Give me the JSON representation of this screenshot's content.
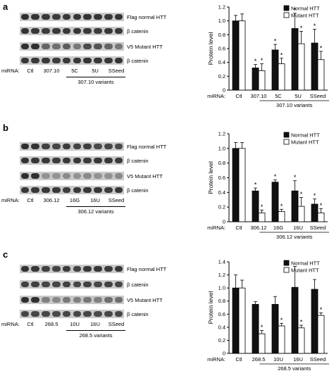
{
  "panels": [
    {
      "label": "a",
      "blot_labels": [
        "Flag normal HTT",
        "β catenin",
        "V5 Mutant HTT",
        "β catenin"
      ],
      "blot_intensity": [
        [
          0.85,
          0.82,
          0.8,
          0.78,
          0.8,
          0.82,
          0.83,
          0.82,
          0.8,
          0.82
        ],
        [
          0.82,
          0.8,
          0.78,
          0.8,
          0.8,
          0.82,
          0.8,
          0.78,
          0.8,
          0.8
        ],
        [
          0.85,
          0.85,
          0.55,
          0.5,
          0.6,
          0.45,
          0.7,
          0.65,
          0.55,
          0.45
        ],
        [
          0.8,
          0.8,
          0.8,
          0.78,
          0.8,
          0.8,
          0.82,
          0.8,
          0.8,
          0.82
        ]
      ],
      "lanes": [
        "Ctl",
        "307.10",
        "5C",
        "5U",
        "SSeed"
      ],
      "miRNA_label": "miRNA:",
      "variants_label": "307.10 variants",
      "chart_data": {
        "type": "bar",
        "title": "",
        "xlabel": "",
        "ylabel": "Protein level",
        "ylim": [
          0,
          1.2
        ],
        "yticks": [
          0,
          0.2,
          0.4,
          0.6,
          0.8,
          1.0,
          1.2
        ],
        "x_prefix": "miRNA:",
        "categories": [
          "Ctl",
          "307.10",
          "5C",
          "5U",
          "SSeed"
        ],
        "group_label": "307.10 variants",
        "series": [
          {
            "name": "Normal HTT",
            "values": [
              1.0,
              0.32,
              0.58,
              0.89,
              0.68
            ],
            "errors": [
              0.08,
              0.05,
              0.08,
              0.22,
              0.2
            ],
            "color": "#111111"
          },
          {
            "name": "Mutant HTT",
            "values": [
              1.0,
              0.28,
              0.38,
              0.67,
              0.44
            ],
            "errors": [
              0.1,
              0.1,
              0.08,
              0.18,
              0.12
            ],
            "color": "#ffffff"
          }
        ],
        "stars": [
          [
            false,
            false
          ],
          [
            true,
            true
          ],
          [
            true,
            true
          ],
          [
            true,
            true
          ],
          [
            true,
            true
          ]
        ],
        "legend_position": "top-right"
      }
    },
    {
      "label": "b",
      "blot_labels": [
        "Flag normal HTT",
        "β catenin",
        "V5 Mutant HTT",
        "β catenin"
      ],
      "blot_intensity": [
        [
          0.85,
          0.82,
          0.75,
          0.72,
          0.78,
          0.74,
          0.76,
          0.7,
          0.72,
          0.7
        ],
        [
          0.82,
          0.8,
          0.8,
          0.78,
          0.8,
          0.8,
          0.78,
          0.8,
          0.8,
          0.78
        ],
        [
          0.85,
          0.85,
          0.3,
          0.3,
          0.35,
          0.3,
          0.35,
          0.3,
          0.3,
          0.35
        ],
        [
          0.8,
          0.8,
          0.8,
          0.8,
          0.78,
          0.8,
          0.8,
          0.8,
          0.78,
          0.8
        ]
      ],
      "lanes": [
        "Ctl",
        "306.12",
        "16G",
        "16U",
        "SSeed"
      ],
      "miRNA_label": "miRNA:",
      "variants_label": "306.12 variants",
      "chart_data": {
        "type": "bar",
        "title": "",
        "xlabel": "",
        "ylabel": "Protein level",
        "ylim": [
          0,
          1.2
        ],
        "yticks": [
          0,
          0.2,
          0.4,
          0.6,
          0.8,
          1.0,
          1.2
        ],
        "x_prefix": "miRNA:",
        "categories": [
          "Ctl",
          "306.12",
          "16G",
          "16U",
          "SSeed"
        ],
        "group_label": "306.12 variants",
        "series": [
          {
            "name": "Normal HTT",
            "values": [
              1.0,
              0.42,
              0.54,
              0.42,
              0.24
            ],
            "errors": [
              0.08,
              0.04,
              0.03,
              0.14,
              0.07
            ],
            "color": "#111111"
          },
          {
            "name": "Mutant HTT",
            "values": [
              1.0,
              0.12,
              0.14,
              0.21,
              0.12
            ],
            "errors": [
              0.08,
              0.04,
              0.03,
              0.12,
              0.06
            ],
            "color": "#ffffff"
          }
        ],
        "stars": [
          [
            false,
            false
          ],
          [
            true,
            true
          ],
          [
            true,
            true
          ],
          [
            true,
            true
          ],
          [
            true,
            true
          ]
        ],
        "legend_position": "top-right"
      }
    },
    {
      "label": "c",
      "blot_labels": [
        "Flag normal HTT",
        "β catenin",
        "V5 Mutant HTT",
        "β catenin"
      ],
      "blot_intensity": [
        [
          0.82,
          0.8,
          0.75,
          0.72,
          0.78,
          0.74,
          0.8,
          0.8,
          0.78,
          0.8
        ],
        [
          0.75,
          0.75,
          0.72,
          0.72,
          0.75,
          0.72,
          0.75,
          0.72,
          0.74,
          0.72
        ],
        [
          0.85,
          0.85,
          0.4,
          0.35,
          0.45,
          0.4,
          0.45,
          0.4,
          0.5,
          0.5
        ],
        [
          0.72,
          0.72,
          0.72,
          0.7,
          0.72,
          0.72,
          0.72,
          0.7,
          0.72,
          0.72
        ]
      ],
      "lanes": [
        "Ctl",
        "268.5",
        "10U",
        "16U",
        "SSeed"
      ],
      "miRNA_label": "miRNA:",
      "variants_label": "268.5 variants",
      "chart_data": {
        "type": "bar",
        "title": "",
        "xlabel": "",
        "ylabel": "Protein level",
        "ylim": [
          0,
          1.4
        ],
        "yticks": [
          0,
          0.2,
          0.4,
          0.6,
          0.8,
          1.0,
          1.2,
          1.4
        ],
        "x_prefix": "miRNA:",
        "categories": [
          "Ctl",
          "268.5",
          "10U",
          "16U",
          "SSeed"
        ],
        "group_label": "268.5 variants",
        "series": [
          {
            "name": "Normal HTT",
            "values": [
              1.0,
              0.75,
              0.75,
              1.01,
              0.98
            ],
            "errors": [
              0.2,
              0.04,
              0.12,
              0.32,
              0.15
            ],
            "color": "#111111"
          },
          {
            "name": "Mutant HTT",
            "values": [
              1.0,
              0.3,
              0.42,
              0.39,
              0.58
            ],
            "errors": [
              0.12,
              0.05,
              0.04,
              0.04,
              0.04
            ],
            "color": "#ffffff"
          }
        ],
        "stars": [
          [
            false,
            false
          ],
          [
            false,
            true
          ],
          [
            false,
            true
          ],
          [
            false,
            true
          ],
          [
            false,
            true
          ]
        ],
        "legend_position": "top-right"
      }
    }
  ]
}
